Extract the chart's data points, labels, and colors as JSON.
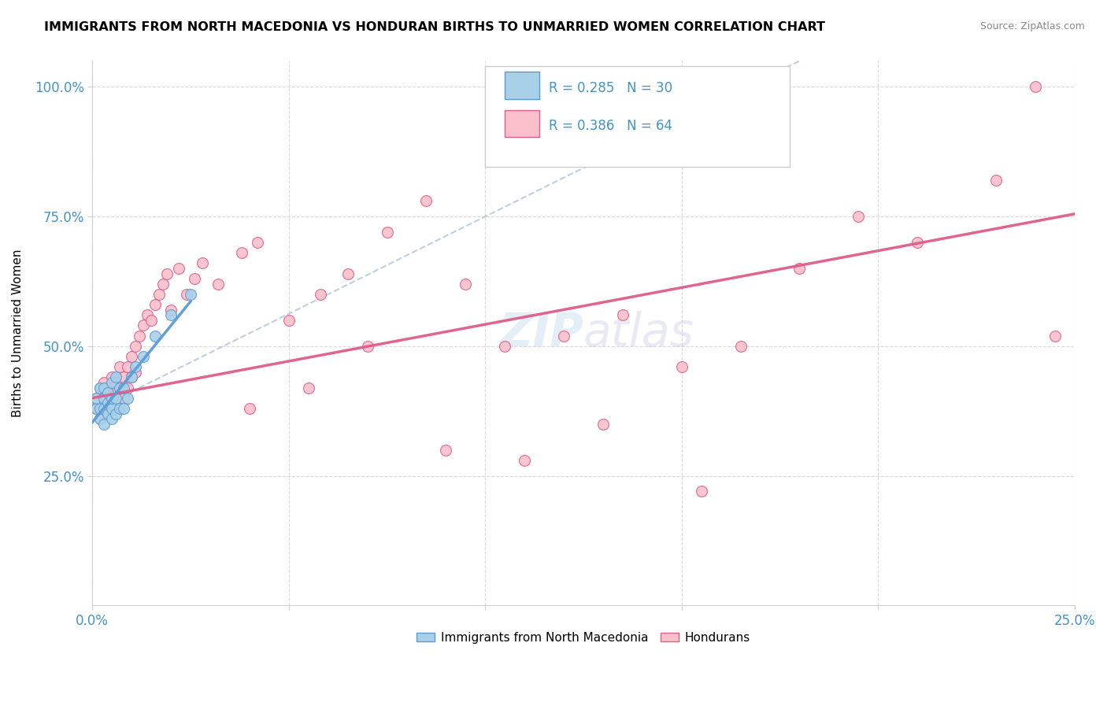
{
  "title": "IMMIGRANTS FROM NORTH MACEDONIA VS HONDURAN BIRTHS TO UNMARRIED WOMEN CORRELATION CHART",
  "source": "Source: ZipAtlas.com",
  "ylabel": "Births to Unmarried Women",
  "legend_label1": "Immigrants from North Macedonia",
  "legend_label2": "Hondurans",
  "r1": "0.285",
  "n1": "30",
  "r2": "0.386",
  "n2": "64",
  "color_blue": "#a8d0e8",
  "color_pink": "#f9c0cb",
  "color_blue_line": "#5b9bd5",
  "color_pink_line": "#e05c8a",
  "color_dashed": "#aac4dc",
  "watermark_color": "#c8dff0",
  "xlim": [
    0,
    0.25
  ],
  "ylim": [
    0,
    1.05
  ],
  "xticks": [
    0,
    0.05,
    0.1,
    0.15,
    0.2,
    0.25
  ],
  "xticklabels": [
    "0.0%",
    "",
    "",
    "",
    "",
    "25.0%"
  ],
  "yticks": [
    0.25,
    0.5,
    0.75,
    1.0
  ],
  "yticklabels": [
    "25.0%",
    "50.0%",
    "75.0%",
    "100.0%"
  ],
  "blue_scatter_x": [
    0.001,
    0.001,
    0.002,
    0.002,
    0.002,
    0.003,
    0.003,
    0.003,
    0.003,
    0.004,
    0.004,
    0.004,
    0.005,
    0.005,
    0.005,
    0.005,
    0.006,
    0.006,
    0.006,
    0.007,
    0.007,
    0.008,
    0.008,
    0.009,
    0.01,
    0.011,
    0.013,
    0.016,
    0.02,
    0.025
  ],
  "blue_scatter_y": [
    0.38,
    0.4,
    0.36,
    0.38,
    0.42,
    0.35,
    0.38,
    0.4,
    0.42,
    0.37,
    0.39,
    0.41,
    0.36,
    0.38,
    0.4,
    0.43,
    0.37,
    0.4,
    0.44,
    0.38,
    0.42,
    0.38,
    0.42,
    0.4,
    0.44,
    0.46,
    0.48,
    0.52,
    0.56,
    0.6
  ],
  "pink_scatter_x": [
    0.001,
    0.001,
    0.002,
    0.002,
    0.003,
    0.003,
    0.003,
    0.004,
    0.004,
    0.005,
    0.005,
    0.006,
    0.006,
    0.007,
    0.007,
    0.007,
    0.008,
    0.008,
    0.009,
    0.009,
    0.01,
    0.01,
    0.011,
    0.011,
    0.012,
    0.013,
    0.014,
    0.015,
    0.016,
    0.017,
    0.018,
    0.019,
    0.02,
    0.022,
    0.024,
    0.026,
    0.028,
    0.032,
    0.038,
    0.042,
    0.05,
    0.058,
    0.065,
    0.075,
    0.085,
    0.095,
    0.105,
    0.12,
    0.135,
    0.15,
    0.165,
    0.18,
    0.195,
    0.21,
    0.23,
    0.245,
    0.04,
    0.055,
    0.07,
    0.09,
    0.11,
    0.13,
    0.155,
    0.24
  ],
  "pink_scatter_y": [
    0.38,
    0.4,
    0.36,
    0.42,
    0.38,
    0.4,
    0.43,
    0.39,
    0.42,
    0.4,
    0.44,
    0.41,
    0.43,
    0.38,
    0.42,
    0.46,
    0.4,
    0.44,
    0.42,
    0.46,
    0.44,
    0.48,
    0.45,
    0.5,
    0.52,
    0.54,
    0.56,
    0.55,
    0.58,
    0.6,
    0.62,
    0.64,
    0.57,
    0.65,
    0.6,
    0.63,
    0.66,
    0.62,
    0.68,
    0.7,
    0.55,
    0.6,
    0.64,
    0.72,
    0.78,
    0.62,
    0.5,
    0.52,
    0.56,
    0.46,
    0.5,
    0.65,
    0.75,
    0.7,
    0.82,
    0.52,
    0.38,
    0.42,
    0.5,
    0.3,
    0.28,
    0.35,
    0.22,
    1.0
  ],
  "blue_trend_x0": 0.0,
  "blue_trend_x1": 0.025,
  "pink_trend_x0": 0.0,
  "pink_trend_x1": 0.25,
  "pink_trend_y0": 0.4,
  "pink_trend_y1": 0.755,
  "dashed_trend_x0": 0.0,
  "dashed_trend_x1": 0.18,
  "dashed_trend_y0": 0.375,
  "dashed_trend_y1": 1.05
}
